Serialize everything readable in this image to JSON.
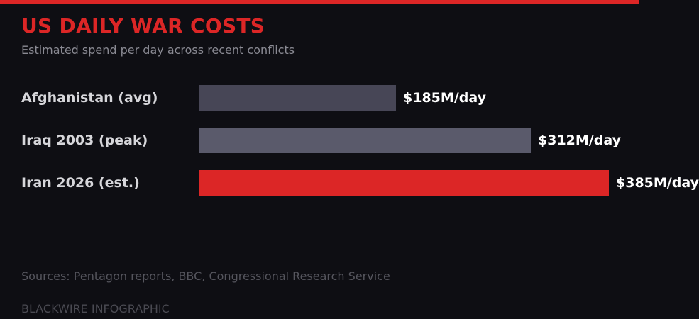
{
  "header": {
    "title": "US DAILY WAR COSTS",
    "subtitle": "Estimated spend per day across recent conflicts"
  },
  "colors": {
    "accent": "#dc2626",
    "background": "#0e0e13",
    "bar_afghanistan": "#474656",
    "bar_iraq": "#5a5a6b",
    "bar_iran": "#dc2626"
  },
  "rows": [
    {
      "label": "Afghanistan (avg)",
      "value_label": "$185M/day",
      "value": 185,
      "color": "#474656"
    },
    {
      "label": "Iraq 2003 (peak)",
      "value_label": "$312M/day",
      "value": 312,
      "color": "#5a5a6b"
    },
    {
      "label": "Iran 2026 (est.)",
      "value_label": "$385M/day",
      "value": 385,
      "color": "#dc2626"
    }
  ],
  "footer": {
    "sources": "Sources: Pentagon reports, BBC, Congressional Research Service",
    "brand": "BLACKWIRE INFOGRAPHIC"
  },
  "chart_data": {
    "type": "bar",
    "orientation": "horizontal",
    "title": "US DAILY WAR COSTS",
    "subtitle": "Estimated spend per day across recent conflicts",
    "categories": [
      "Afghanistan (avg)",
      "Iraq 2003 (peak)",
      "Iran 2026 (est.)"
    ],
    "values": [
      185,
      312,
      385
    ],
    "value_labels": [
      "$185M/day",
      "$312M/day",
      "$385M/day"
    ],
    "units": "USD millions per day",
    "xlabel": "",
    "ylabel": "",
    "grid": false,
    "legend": null,
    "annotations": [
      "Sources: Pentagon reports, BBC, Congressional Research Service",
      "BLACKWIRE INFOGRAPHIC"
    ]
  }
}
